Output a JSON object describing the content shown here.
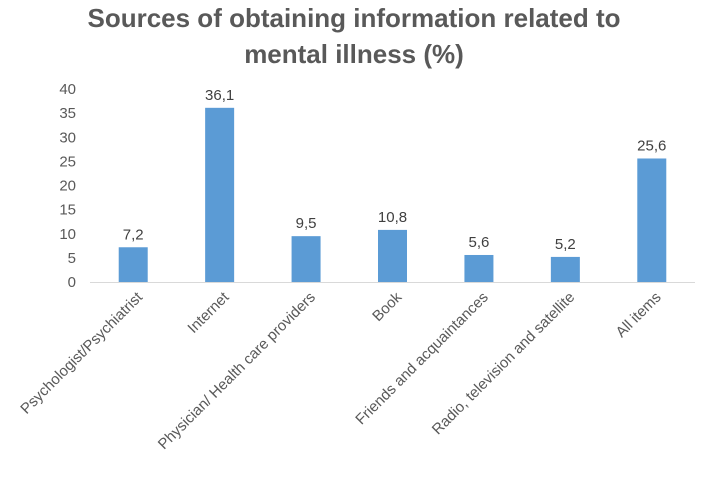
{
  "chart_data": {
    "type": "bar",
    "title_lines": [
      "Sources of obtaining information related to",
      "mental illness (%)"
    ],
    "categories": [
      "Psychologist/Psychiatrist",
      "Internet",
      "Physician/ Health care providers",
      "Book",
      "Friends and acquaintances",
      "Radio, television and satellite",
      "All items"
    ],
    "values": [
      7.2,
      36.1,
      9.5,
      10.8,
      5.6,
      5.2,
      25.6
    ],
    "value_labels": [
      "7,2",
      "36,1",
      "9,5",
      "10,8",
      "5,6",
      "5,2",
      "25,6"
    ],
    "y_ticks": [
      "0",
      "5",
      "10",
      "15",
      "20",
      "25",
      "30",
      "35",
      "40"
    ],
    "ylim": [
      0,
      40
    ],
    "grid": false,
    "legend": "none",
    "bar_color": "#5B9BD5",
    "axis_color": "#D9D9D9"
  }
}
